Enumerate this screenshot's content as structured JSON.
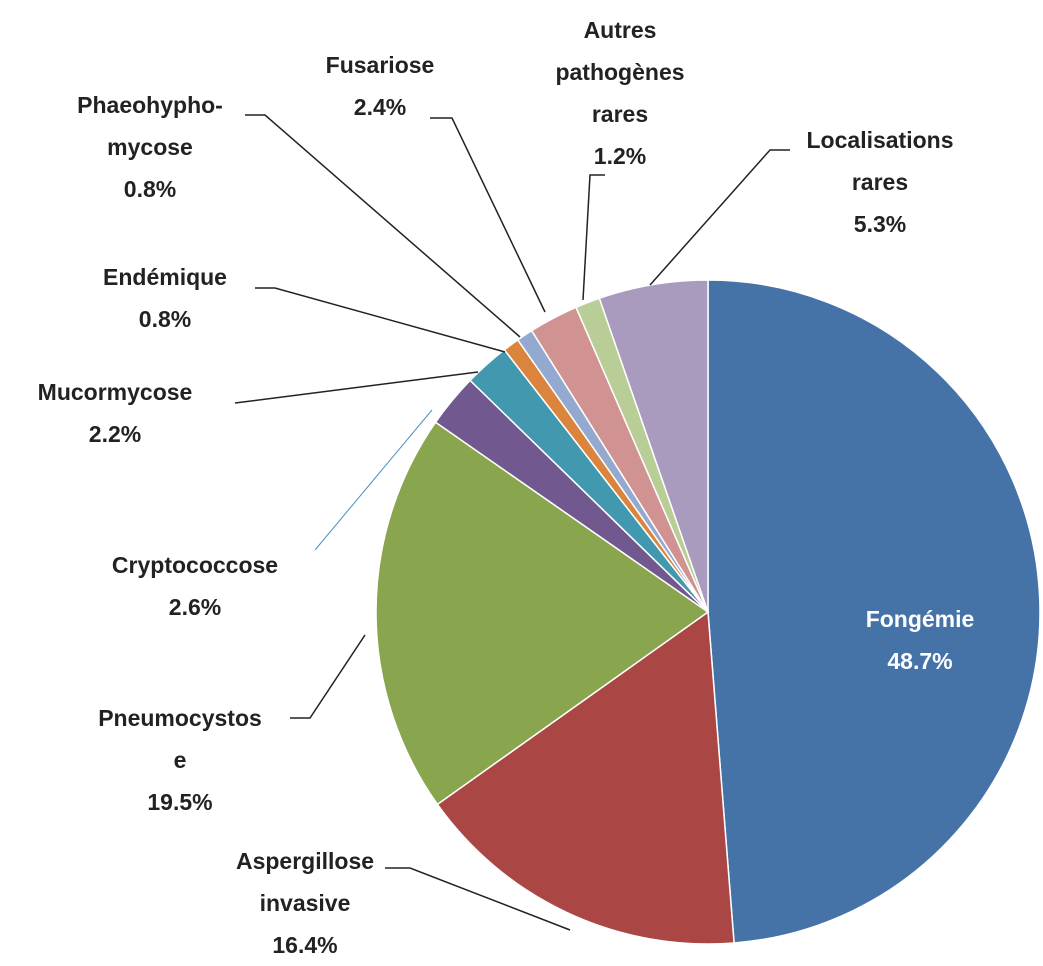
{
  "chart_data": {
    "type": "pie",
    "categories": [
      "Fongémie",
      "Aspergillose\ninvasive",
      "Pneumocystos\ne",
      "Cryptococcose",
      "Mucormycose",
      "Endémique",
      "Phaeohypho-\nmycose",
      "Fusariose",
      "Autres\npathogènes\nrares",
      "Localisations\nrares"
    ],
    "values": [
      48.7,
      16.4,
      19.5,
      2.6,
      2.2,
      0.8,
      0.8,
      2.4,
      1.2,
      5.3
    ],
    "value_labels": [
      "48.7%",
      "16.4%",
      "19.5%",
      "2.6%",
      "2.2%",
      "0.8%",
      "0.8%",
      "2.4%",
      "1.2%",
      "5.3%"
    ],
    "colors": [
      "#4572a7",
      "#aa4643",
      "#89a54e",
      "#71588f",
      "#4198af",
      "#db843d",
      "#93a9cf",
      "#d19392",
      "#b9cd96",
      "#a99bbd"
    ]
  }
}
